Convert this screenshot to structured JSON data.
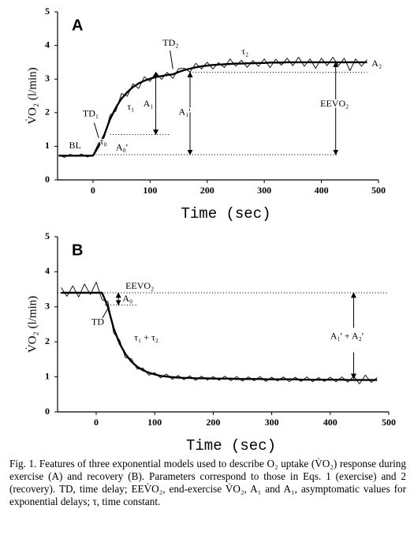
{
  "chart_data": [
    {
      "type": "line",
      "panel": "A",
      "x": [
        -60,
        -50,
        -40,
        -30,
        -20,
        -10,
        0,
        10,
        20,
        30,
        40,
        50,
        60,
        70,
        80,
        90,
        100,
        110,
        120,
        130,
        140,
        150,
        160,
        170,
        180,
        190,
        200,
        210,
        220,
        230,
        240,
        250,
        260,
        270,
        280,
        290,
        300,
        310,
        320,
        330,
        340,
        350,
        360,
        370,
        380,
        390,
        400,
        410,
        420,
        430,
        440,
        450,
        460,
        470,
        480
      ],
      "series": [
        {
          "color": "#000000",
          "values": [
            0.75,
            0.67,
            0.76,
            0.7,
            0.77,
            0.68,
            0.74,
            1.1,
            1.27,
            1.93,
            2.05,
            2.57,
            2.49,
            2.86,
            2.72,
            3.07,
            2.93,
            3.2,
            2.99,
            3.2,
            3.02,
            3.31,
            3.32,
            3.21,
            3.47,
            3.3,
            3.5,
            3.3,
            3.49,
            3.34,
            3.6,
            3.38,
            3.56,
            3.35,
            3.55,
            3.38,
            3.6,
            3.34,
            3.59,
            3.41,
            3.62,
            3.4,
            3.65,
            3.38,
            3.6,
            3.32,
            3.62,
            3.4,
            3.65,
            3.4,
            3.62,
            3.25,
            3.6,
            3.38,
            3.58
          ]
        },
        {
          "color": "#000000",
          "values": [
            0.72,
            0.72,
            0.72,
            0.72,
            0.72,
            0.72,
            0.72,
            1.0,
            1.35,
            1.81,
            2.15,
            2.42,
            2.61,
            2.76,
            2.87,
            2.95,
            3.01,
            3.06,
            3.09,
            3.12,
            3.14,
            3.21,
            3.27,
            3.31,
            3.35,
            3.38,
            3.4,
            3.42,
            3.43,
            3.44,
            3.45,
            3.46,
            3.46,
            3.47,
            3.47,
            3.48,
            3.48,
            3.49,
            3.49,
            3.49,
            3.5,
            3.5,
            3.5,
            3.5,
            3.5,
            3.5,
            3.5,
            3.5,
            3.5,
            3.5,
            3.5,
            3.5,
            3.5,
            3.5,
            3.5
          ]
        }
      ],
      "xlim": [
        -62,
        500
      ],
      "ylim": [
        0,
        5
      ],
      "xticks": [
        0,
        100,
        200,
        300,
        400,
        500
      ],
      "yticks": [
        0,
        1,
        2,
        3,
        4,
        5
      ],
      "x_label": "Time (sec)",
      "y_label": "V̇O₂ (l/min)",
      "hlines": [
        {
          "y": 0.75,
          "x": [
            0,
            430
          ]
        },
        {
          "y": 1.35,
          "x": [
            30,
            135
          ]
        },
        {
          "y": 3.2,
          "x": [
            170,
            480
          ]
        }
      ],
      "arrows": [
        {
          "x": [
            110,
            110
          ],
          "y": [
            1.35,
            3.2
          ],
          "heads": "both"
        },
        {
          "x": [
            170,
            170
          ],
          "y": [
            0.75,
            3.2
          ],
          "heads": "both"
        },
        {
          "x": [
            425,
            425
          ],
          "y": [
            0.75,
            3.5
          ],
          "heads": "both"
        },
        {
          "x": [
            2,
            10
          ],
          "y": [
            1.7,
            1.25
          ],
          "heads": "none"
        },
        {
          "x": [
            135,
            140
          ],
          "y": [
            3.85,
            3.3
          ],
          "heads": "none"
        }
      ],
      "annotations": [
        {
          "text": "BL",
          "x": -42,
          "y": 1.0
        },
        {
          "text": "TD₁",
          "x": -18,
          "y": 1.95
        },
        {
          "text": "τ₀",
          "x": 12,
          "y": 1.12
        },
        {
          "text": "A₀'",
          "x": 40,
          "y": 0.95
        },
        {
          "text": "τ₁",
          "x": 60,
          "y": 2.15
        },
        {
          "text": "A₁",
          "x": 88,
          "y": 2.25
        },
        {
          "text": "TD₂",
          "x": 122,
          "y": 4.05
        },
        {
          "text": "τ₂",
          "x": 260,
          "y": 3.8
        },
        {
          "text": "A₂",
          "x": 488,
          "y": 3.45
        },
        {
          "text": "A₁'",
          "x": 150,
          "y": 2.0
        },
        {
          "text": "EEVO₂",
          "x": 398,
          "y": 2.25
        }
      ]
    },
    {
      "type": "line",
      "panel": "B",
      "x": [
        -60,
        -50,
        -40,
        -30,
        -20,
        -10,
        0,
        10,
        20,
        30,
        40,
        50,
        60,
        70,
        80,
        90,
        100,
        110,
        120,
        130,
        140,
        150,
        160,
        170,
        180,
        190,
        200,
        210,
        220,
        230,
        240,
        250,
        260,
        270,
        280,
        290,
        300,
        310,
        320,
        330,
        340,
        350,
        360,
        370,
        380,
        390,
        400,
        410,
        420,
        430,
        440,
        450,
        460,
        470,
        480
      ],
      "series": [
        {
          "color": "#000000",
          "values": [
            3.55,
            3.3,
            3.6,
            3.28,
            3.65,
            3.35,
            3.7,
            3.2,
            3.15,
            2.25,
            2.05,
            1.55,
            1.52,
            1.22,
            1.25,
            1.05,
            1.12,
            0.97,
            1.08,
            0.93,
            1.04,
            0.92,
            1.03,
            0.9,
            1.02,
            0.91,
            1.01,
            0.9,
            1.02,
            0.89,
            1.01,
            0.88,
            1.0,
            0.89,
            1.01,
            0.87,
            0.99,
            0.88,
            1.0,
            0.86,
            0.99,
            0.87,
            1.0,
            0.86,
            0.98,
            0.87,
            0.99,
            0.86,
            1.0,
            0.85,
            1.02,
            0.8,
            1.05,
            0.84,
            0.98
          ]
        },
        {
          "color": "#000000",
          "values": [
            3.4,
            3.4,
            3.4,
            3.4,
            3.4,
            3.4,
            3.4,
            3.4,
            3.0,
            2.38,
            1.95,
            1.65,
            1.44,
            1.29,
            1.19,
            1.12,
            1.07,
            1.03,
            1.01,
            0.99,
            0.98,
            0.97,
            0.97,
            0.96,
            0.96,
            0.96,
            0.95,
            0.95,
            0.95,
            0.95,
            0.94,
            0.94,
            0.94,
            0.94,
            0.94,
            0.93,
            0.93,
            0.93,
            0.93,
            0.93,
            0.93,
            0.92,
            0.92,
            0.92,
            0.92,
            0.92,
            0.92,
            0.92,
            0.92,
            0.91,
            0.91,
            0.91,
            0.91,
            0.91,
            0.91
          ]
        }
      ],
      "xlim": [
        -66,
        500
      ],
      "ylim": [
        0,
        5
      ],
      "xticks": [
        0,
        100,
        200,
        300,
        400,
        500
      ],
      "yticks": [
        0,
        1,
        2,
        3,
        4,
        5
      ],
      "x_label": "Time (sec)",
      "y_label": "V̇O₂ (l/min)",
      "hlines": [
        {
          "y": 3.4,
          "x": [
            -66,
            500
          ]
        },
        {
          "y": 3.05,
          "x": [
            15,
            70
          ]
        }
      ],
      "arrows": [
        {
          "x": [
            440,
            440
          ],
          "y": [
            2.4,
            3.4
          ],
          "heads": "end"
        },
        {
          "x": [
            440,
            440
          ],
          "y": [
            1.7,
            0.95
          ],
          "heads": "end"
        },
        {
          "x": [
            38,
            38
          ],
          "y": [
            3.05,
            3.4
          ],
          "heads": "both"
        },
        {
          "x": [
            8,
            20
          ],
          "y": [
            2.6,
            2.95
          ],
          "heads": "none"
        }
      ],
      "annotations": [
        {
          "text": "EEVO₂",
          "x": 50,
          "y": 3.58
        },
        {
          "text": "A₀",
          "x": 45,
          "y": 3.22
        },
        {
          "text": "TD",
          "x": -8,
          "y": 2.55
        },
        {
          "text": "τ₁ + τ₂",
          "x": 65,
          "y": 2.1
        },
        {
          "text": "A₁' + A₂'",
          "x": 400,
          "y": 2.15
        }
      ]
    }
  ],
  "caption": "Fig. 1. Features of three exponential models used to describe O₂ uptake (V̇O₂) response during exercise (A) and recovery (B). Parameters correspond to those in Eqs. 1 (exercise) and 2 (recovery). TD, time delay; EEV̇O₂, end-exercise V̇O₂, A₁ and A₁, asymptomatic values for exponential delays; τ, time constant."
}
